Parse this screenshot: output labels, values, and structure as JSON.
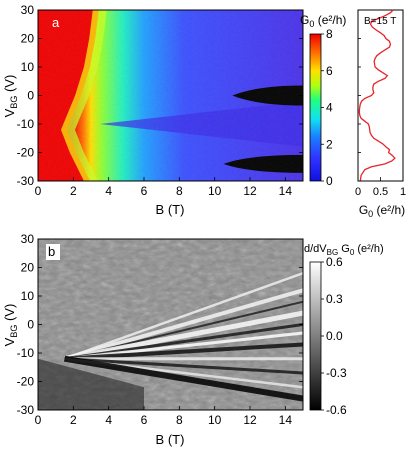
{
  "chart_data": [
    {
      "panel_label": "a",
      "type": "heatmap",
      "xlabel": "B (T)",
      "ylabel_main": "V",
      "ylabel_sub": "BG",
      "ylabel_unit": " (V)",
      "xlim": [
        0,
        15
      ],
      "ylim": [
        -30,
        30
      ],
      "xticks": [
        "0",
        "2",
        "4",
        "6",
        "8",
        "10",
        "12",
        "14"
      ],
      "yticks": [
        "-30",
        "-20",
        "-10",
        "0",
        "10",
        "20",
        "30"
      ],
      "colorbar": {
        "label_main": "G",
        "label_sub": "0",
        "label_unit": " (e²/h)",
        "range": [
          0,
          8
        ],
        "ticks": [
          "0",
          "2",
          "4",
          "6",
          "8"
        ],
        "colormap": "jet"
      },
      "features": {
        "high_region_edge_V": [
          -30,
          -20,
          -12,
          0,
          10,
          20,
          30
        ],
        "high_region_edge_B": [
          2.6,
          1.8,
          1.3,
          2.1,
          2.6,
          2.9,
          3.1
        ],
        "dark_lobes": [
          {
            "V": 0,
            "B_start": 11,
            "B_end": 15
          },
          {
            "V": -24,
            "B_start": 10.5,
            "B_end": 15
          }
        ]
      }
    },
    {
      "panel_label": "",
      "type": "line",
      "annotation": "B=15 T",
      "xlabel_main": "G",
      "xlabel_sub": "0",
      "xlabel_unit": " (e²/h)",
      "xlim": [
        0,
        1
      ],
      "ylim": [
        -30,
        30
      ],
      "xticks": [
        "0",
        "0.5",
        "1"
      ],
      "series": [
        {
          "color": "#e8242a",
          "V": [
            -30,
            -28,
            -26,
            -25,
            -24,
            -23,
            -22,
            -21,
            -20,
            -19,
            -18,
            -17,
            -16,
            -15,
            -14,
            -13,
            -12,
            -11,
            -10,
            -9,
            -8,
            -7,
            -6,
            -5,
            -4,
            -3,
            -2,
            -1,
            0,
            1,
            2,
            3,
            4,
            5,
            6,
            7,
            8,
            9,
            10,
            11,
            12,
            13,
            14,
            15,
            16,
            17,
            18,
            19,
            20,
            21,
            22,
            23,
            24,
            25,
            26,
            27,
            28,
            29,
            30
          ],
          "G": [
            0.05,
            0.07,
            0.15,
            0.3,
            0.6,
            0.75,
            0.82,
            0.76,
            0.68,
            0.7,
            0.62,
            0.55,
            0.45,
            0.35,
            0.3,
            0.27,
            0.26,
            0.25,
            0.23,
            0.15,
            0.07,
            0.04,
            0.03,
            0.03,
            0.04,
            0.05,
            0.08,
            0.15,
            0.3,
            0.35,
            0.33,
            0.33,
            0.35,
            0.45,
            0.6,
            0.65,
            0.55,
            0.45,
            0.38,
            0.37,
            0.36,
            0.38,
            0.42,
            0.5,
            0.6,
            0.7,
            0.72,
            0.7,
            0.62,
            0.58,
            0.5,
            0.4,
            0.32,
            0.28,
            0.3,
            0.45,
            0.6,
            0.72,
            0.78
          ]
        }
      ]
    },
    {
      "panel_label": "b",
      "type": "heatmap",
      "xlabel": "B (T)",
      "ylabel_main": "V",
      "ylabel_sub": "BG",
      "ylabel_unit": " (V)",
      "xlim": [
        0,
        15
      ],
      "ylim": [
        -30,
        30
      ],
      "xticks": [
        "0",
        "2",
        "4",
        "6",
        "8",
        "10",
        "12",
        "14"
      ],
      "yticks": [
        "-30",
        "-20",
        "-10",
        "0",
        "10",
        "20",
        "30"
      ],
      "colorbar": {
        "label_pre": "d/dV",
        "label_sub": "BG",
        "label_post": " G",
        "label_sub2": "0",
        "label_unit": " (e²/h)",
        "range": [
          -0.6,
          0.6
        ],
        "ticks": [
          "0.6",
          "0.3",
          "0.0",
          "-0.3",
          "-0.6"
        ],
        "colormap": "gray"
      }
    }
  ]
}
